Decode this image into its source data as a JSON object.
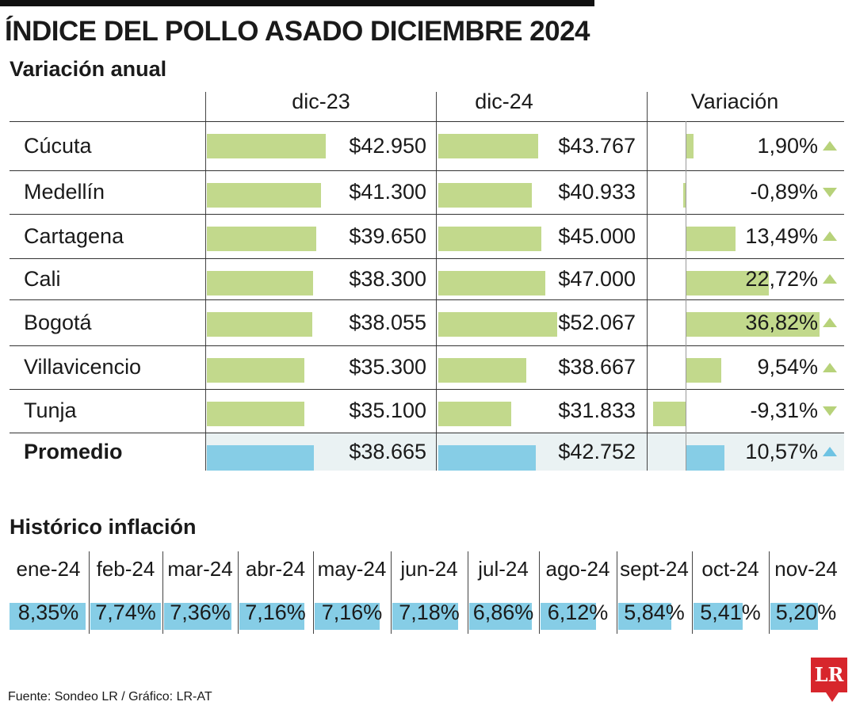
{
  "title": "ÍNDICE DEL POLLO ASADO DICIEMBRE 2024",
  "subtitle": "Variación anual",
  "columns": [
    "dic-23",
    "dic-24",
    "Variación"
  ],
  "historic_title": "Histórico inflación",
  "source": "Fuente: Sondeo LR / Gráfico: LR-AT",
  "logo_text": "LR",
  "colors": {
    "bar_green": "#c2d98c",
    "bar_blue": "#86cde6",
    "logo_red": "#d7262c"
  },
  "chart_data": [
    {
      "type": "table",
      "title": "ÍNDICE DEL POLLO ASADO DICIEMBRE 2024",
      "subtitle": "Variación anual",
      "columns": [
        "dic-23",
        "dic-24",
        "Variación"
      ],
      "rows": [
        {
          "city": "Cúcuta",
          "dic23": 42950,
          "dic23_label": "$42.950",
          "dic24": 43767,
          "dic24_label": "$43.767",
          "variation": 1.9,
          "variation_label": "1,90%",
          "trend": "up"
        },
        {
          "city": "Medellín",
          "dic23": 41300,
          "dic23_label": "$41.300",
          "dic24": 40933,
          "dic24_label": "$40.933",
          "variation": -0.89,
          "variation_label": "-0,89%",
          "trend": "down"
        },
        {
          "city": "Cartagena",
          "dic23": 39650,
          "dic23_label": "$39.650",
          "dic24": 45000,
          "dic24_label": "$45.000",
          "variation": 13.49,
          "variation_label": "13,49%",
          "trend": "up"
        },
        {
          "city": "Cali",
          "dic23": 38300,
          "dic23_label": "$38.300",
          "dic24": 47000,
          "dic24_label": "$47.000",
          "variation": 22.72,
          "variation_label": "22,72%",
          "trend": "up"
        },
        {
          "city": "Bogotá",
          "dic23": 38055,
          "dic23_label": "$38.055",
          "dic24": 52067,
          "dic24_label": "$52.067",
          "variation": 36.82,
          "variation_label": "36,82%",
          "trend": "up"
        },
        {
          "city": "Villavicencio",
          "dic23": 35300,
          "dic23_label": "$35.300",
          "dic24": 38667,
          "dic24_label": "$38.667",
          "variation": 9.54,
          "variation_label": "9,54%",
          "trend": "up"
        },
        {
          "city": "Tunja",
          "dic23": 35100,
          "dic23_label": "$35.100",
          "dic24": 31833,
          "dic24_label": "$31.833",
          "variation": -9.31,
          "variation_label": "-9,31%",
          "trend": "down"
        }
      ],
      "average": {
        "city": "Promedio",
        "dic23": 38665,
        "dic23_label": "$38.665",
        "dic24": 42752,
        "dic24_label": "$42.752",
        "variation": 10.57,
        "variation_label": "10,57%",
        "trend": "up"
      }
    },
    {
      "type": "bar",
      "title": "Histórico inflación",
      "categories": [
        "ene-24",
        "feb-24",
        "mar-24",
        "abr-24",
        "may-24",
        "jun-24",
        "jul-24",
        "ago-24",
        "sept-24",
        "oct-24",
        "nov-24"
      ],
      "values": [
        8.35,
        7.74,
        7.36,
        7.16,
        7.16,
        7.18,
        6.86,
        6.12,
        5.84,
        5.41,
        5.2
      ],
      "labels": [
        "8,35%",
        "7,74%",
        "7,36%",
        "7,16%",
        "7,16%",
        "7,18%",
        "6,86%",
        "6,12%",
        "5,84%",
        "5,41%",
        "5,20%"
      ]
    }
  ]
}
